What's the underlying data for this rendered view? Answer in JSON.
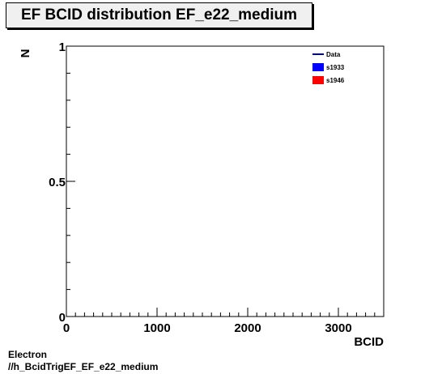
{
  "title": "EF BCID distribution EF_e22_medium",
  "footer": {
    "line1": "Electron",
    "line2": "//h_BcidTrigEF_EF_e22_medium"
  },
  "chart_data": {
    "type": "line",
    "title": "EF BCID distribution EF_e22_medium",
    "xlabel": "BCID",
    "ylabel": "N",
    "xlim": [
      0,
      3500
    ],
    "ylim": [
      0,
      1
    ],
    "x_ticks": [
      0,
      1000,
      2000,
      3000
    ],
    "y_ticks": [
      0,
      0.5,
      1
    ],
    "x_tick_labels": [
      "0",
      "1000",
      "2000",
      "3000"
    ],
    "y_tick_labels": [
      "0",
      "0.5",
      "1"
    ],
    "grid": false,
    "legend_position": "top-right",
    "series": [
      {
        "name": "Data",
        "style": "line",
        "color": "#000080",
        "values": []
      },
      {
        "name": "s1933",
        "style": "fill",
        "color": "#0000ff",
        "values": []
      },
      {
        "name": "s1946",
        "style": "fill",
        "color": "#ff0000",
        "values": []
      }
    ]
  }
}
